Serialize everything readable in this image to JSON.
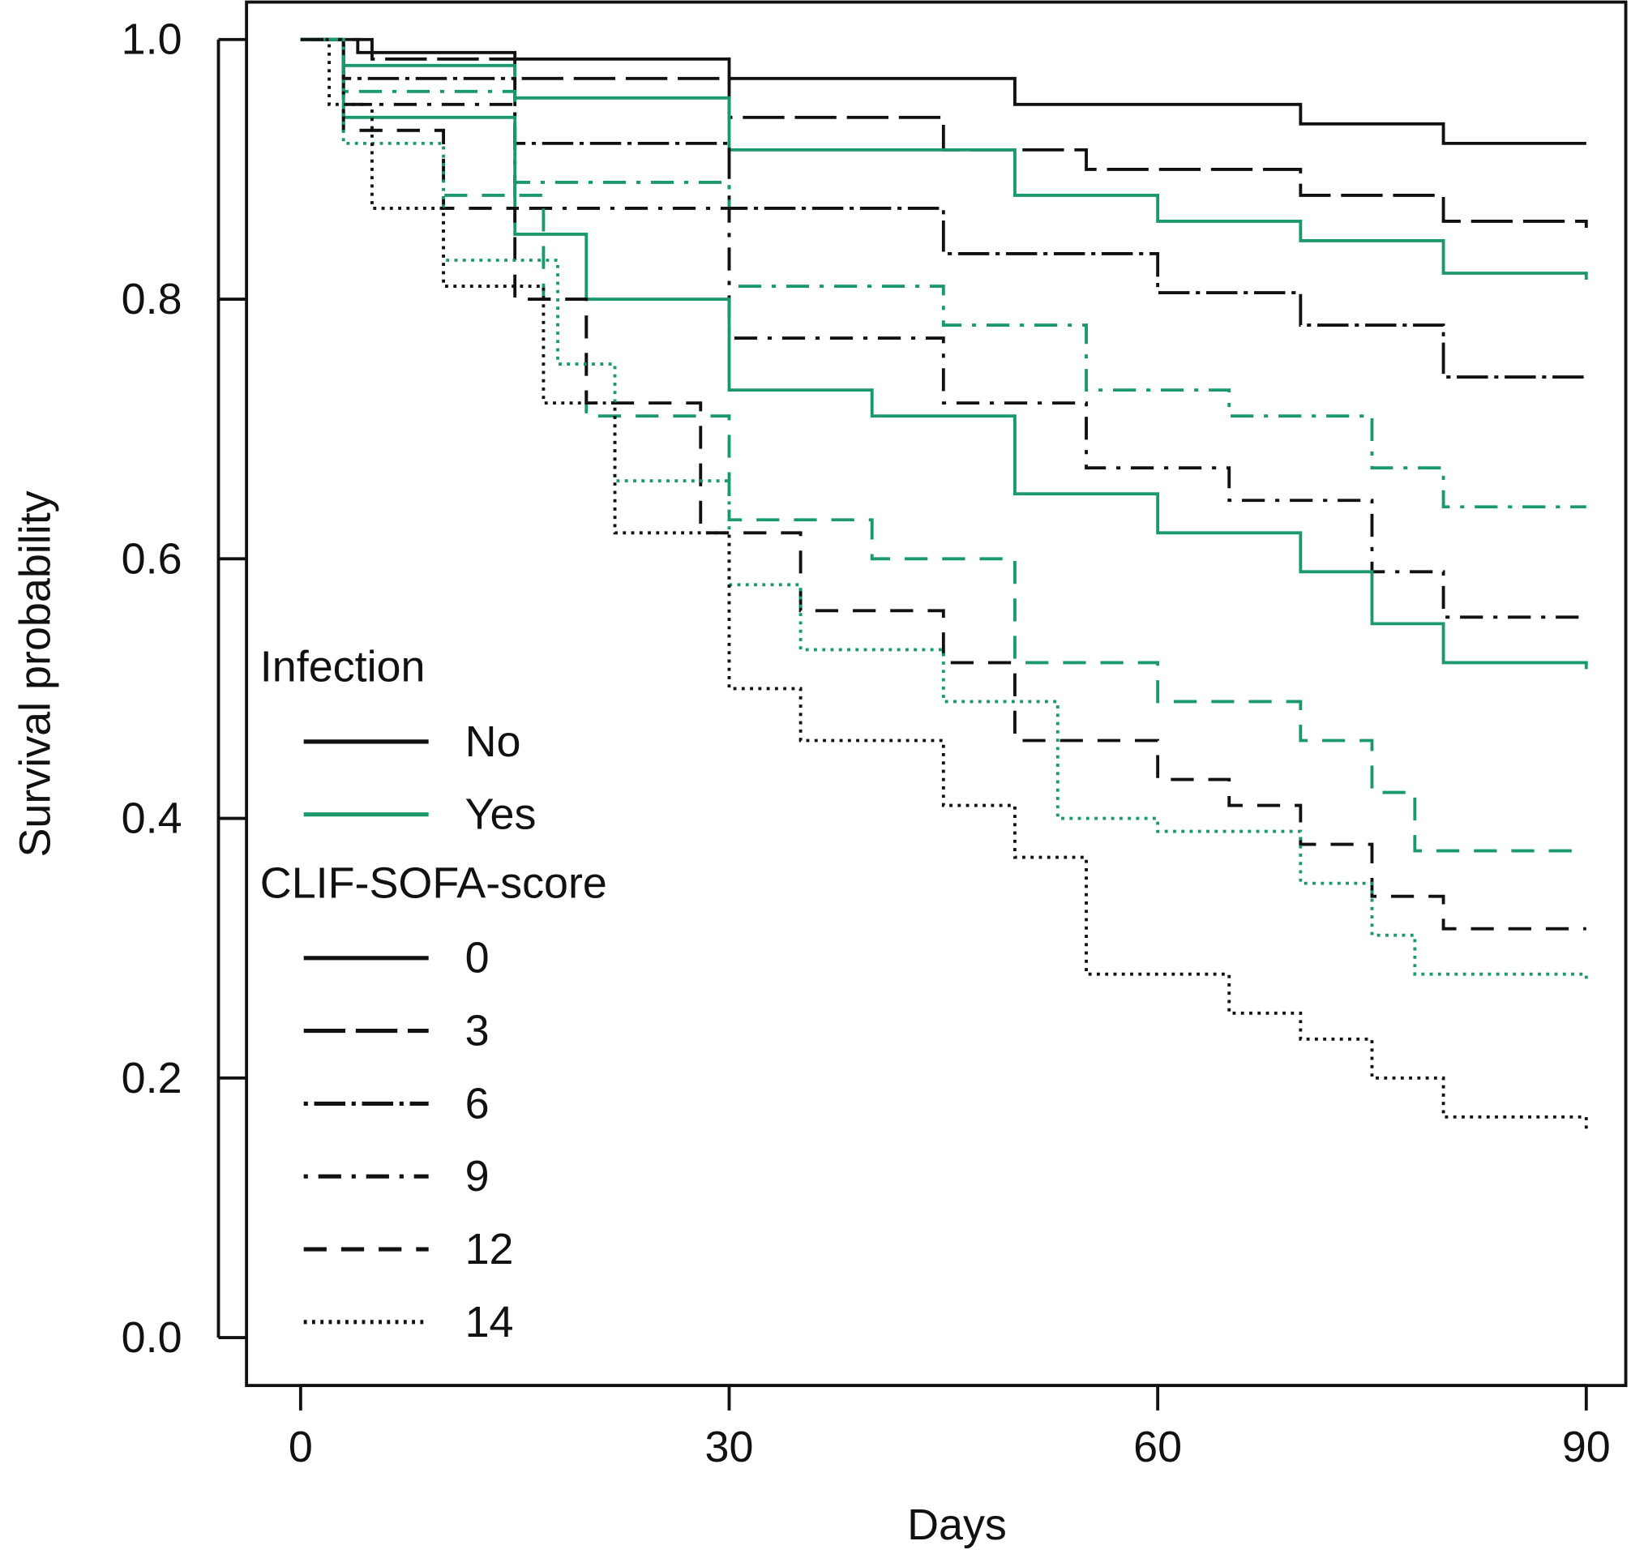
{
  "chart_data": {
    "type": "line",
    "step": true,
    "xlabel": "Days",
    "ylabel": "Survival probability",
    "xlim": [
      0,
      90
    ],
    "ylim": [
      0,
      1
    ],
    "xticks": [
      "0",
      "30",
      "60",
      "90"
    ],
    "yticks": [
      "0.0",
      "0.2",
      "0.4",
      "0.6",
      "0.8",
      "1.0"
    ],
    "grid": false,
    "legend": {
      "placement": "left",
      "groups": [
        {
          "title": "Infection",
          "entries": [
            {
              "label": "No",
              "color": "#111111",
              "style": "solid"
            },
            {
              "label": "Yes",
              "color": "#1a9a6a",
              "style": "solid"
            }
          ]
        },
        {
          "title": "CLIF-SOFA-score",
          "entries": [
            {
              "label": "0",
              "color": "#111111",
              "style": "solid"
            },
            {
              "label": "3",
              "color": "#111111",
              "style": "longdash"
            },
            {
              "label": "6",
              "color": "#111111",
              "style": "dashdot"
            },
            {
              "label": "9",
              "color": "#111111",
              "style": "dotdash"
            },
            {
              "label": "12",
              "color": "#111111",
              "style": "dashed"
            },
            {
              "label": "14",
              "color": "#111111",
              "style": "dotted"
            }
          ]
        }
      ]
    },
    "series": [
      {
        "color": "#111111",
        "style": "solid",
        "points": [
          [
            0,
            1
          ],
          [
            4,
            0.99
          ],
          [
            15,
            0.985
          ],
          [
            30,
            0.97
          ],
          [
            50,
            0.95
          ],
          [
            70,
            0.935
          ],
          [
            80,
            0.92
          ],
          [
            90,
            0.92
          ]
        ]
      },
      {
        "color": "#111111",
        "style": "longdash",
        "points": [
          [
            0,
            1
          ],
          [
            5,
            0.985
          ],
          [
            15,
            0.97
          ],
          [
            30,
            0.94
          ],
          [
            45,
            0.915
          ],
          [
            55,
            0.9
          ],
          [
            70,
            0.88
          ],
          [
            80,
            0.86
          ],
          [
            90,
            0.855
          ]
        ]
      },
      {
        "color": "#1a9a6a",
        "style": "solid",
        "points": [
          [
            0,
            1
          ],
          [
            3,
            0.98
          ],
          [
            15,
            0.955
          ],
          [
            30,
            0.915
          ],
          [
            50,
            0.88
          ],
          [
            60,
            0.86
          ],
          [
            70,
            0.845
          ],
          [
            80,
            0.82
          ],
          [
            90,
            0.815
          ]
        ]
      },
      {
        "color": "#111111",
        "style": "dashdot",
        "points": [
          [
            0,
            1
          ],
          [
            3,
            0.97
          ],
          [
            15,
            0.92
          ],
          [
            30,
            0.87
          ],
          [
            45,
            0.835
          ],
          [
            60,
            0.805
          ],
          [
            70,
            0.78
          ],
          [
            80,
            0.74
          ],
          [
            90,
            0.74
          ]
        ]
      },
      {
        "color": "#1a9a6a",
        "style": "dotdash",
        "points": [
          [
            0,
            1
          ],
          [
            3,
            0.96
          ],
          [
            15,
            0.89
          ],
          [
            30,
            0.81
          ],
          [
            45,
            0.78
          ],
          [
            55,
            0.73
          ],
          [
            65,
            0.71
          ],
          [
            75,
            0.67
          ],
          [
            80,
            0.64
          ],
          [
            90,
            0.64
          ]
        ]
      },
      {
        "color": "#111111",
        "style": "dotdash",
        "points": [
          [
            0,
            1
          ],
          [
            3,
            0.95
          ],
          [
            15,
            0.87
          ],
          [
            30,
            0.77
          ],
          [
            45,
            0.72
          ],
          [
            55,
            0.67
          ],
          [
            65,
            0.645
          ],
          [
            75,
            0.59
          ],
          [
            80,
            0.555
          ],
          [
            90,
            0.555
          ]
        ]
      },
      {
        "color": "#1a9a6a",
        "style": "solid",
        "points": [
          [
            0,
            1
          ],
          [
            3,
            0.94
          ],
          [
            15,
            0.85
          ],
          [
            20,
            0.8
          ],
          [
            30,
            0.73
          ],
          [
            40,
            0.71
          ],
          [
            50,
            0.65
          ],
          [
            60,
            0.62
          ],
          [
            70,
            0.59
          ],
          [
            75,
            0.55
          ],
          [
            80,
            0.52
          ],
          [
            90,
            0.515
          ]
        ]
      },
      {
        "color": "#1a9a6a",
        "style": "dashed",
        "points": [
          [
            0,
            1
          ],
          [
            3,
            0.93
          ],
          [
            10,
            0.88
          ],
          [
            17,
            0.8
          ],
          [
            20,
            0.71
          ],
          [
            30,
            0.63
          ],
          [
            40,
            0.6
          ],
          [
            50,
            0.52
          ],
          [
            60,
            0.49
          ],
          [
            70,
            0.46
          ],
          [
            75,
            0.42
          ],
          [
            78,
            0.375
          ],
          [
            90,
            0.375
          ]
        ]
      },
      {
        "color": "#111111",
        "style": "dashed",
        "points": [
          [
            0,
            1
          ],
          [
            3,
            0.93
          ],
          [
            10,
            0.87
          ],
          [
            15,
            0.8
          ],
          [
            20,
            0.72
          ],
          [
            28,
            0.62
          ],
          [
            35,
            0.56
          ],
          [
            45,
            0.52
          ],
          [
            50,
            0.46
          ],
          [
            60,
            0.43
          ],
          [
            65,
            0.41
          ],
          [
            70,
            0.38
          ],
          [
            75,
            0.34
          ],
          [
            80,
            0.315
          ],
          [
            90,
            0.315
          ]
        ]
      },
      {
        "color": "#1a9a6a",
        "style": "dotted",
        "points": [
          [
            0,
            1
          ],
          [
            3,
            0.92
          ],
          [
            10,
            0.83
          ],
          [
            18,
            0.75
          ],
          [
            22,
            0.66
          ],
          [
            30,
            0.58
          ],
          [
            35,
            0.53
          ],
          [
            45,
            0.49
          ],
          [
            53,
            0.4
          ],
          [
            60,
            0.39
          ],
          [
            70,
            0.35
          ],
          [
            75,
            0.31
          ],
          [
            78,
            0.28
          ],
          [
            90,
            0.275
          ]
        ]
      },
      {
        "color": "#111111",
        "style": "dotted",
        "points": [
          [
            0,
            1
          ],
          [
            2,
            0.95
          ],
          [
            5,
            0.87
          ],
          [
            10,
            0.81
          ],
          [
            17,
            0.72
          ],
          [
            22,
            0.62
          ],
          [
            30,
            0.5
          ],
          [
            35,
            0.46
          ],
          [
            45,
            0.41
          ],
          [
            50,
            0.37
          ],
          [
            55,
            0.28
          ],
          [
            65,
            0.25
          ],
          [
            70,
            0.23
          ],
          [
            75,
            0.2
          ],
          [
            80,
            0.17
          ],
          [
            90,
            0.16
          ]
        ]
      }
    ]
  }
}
